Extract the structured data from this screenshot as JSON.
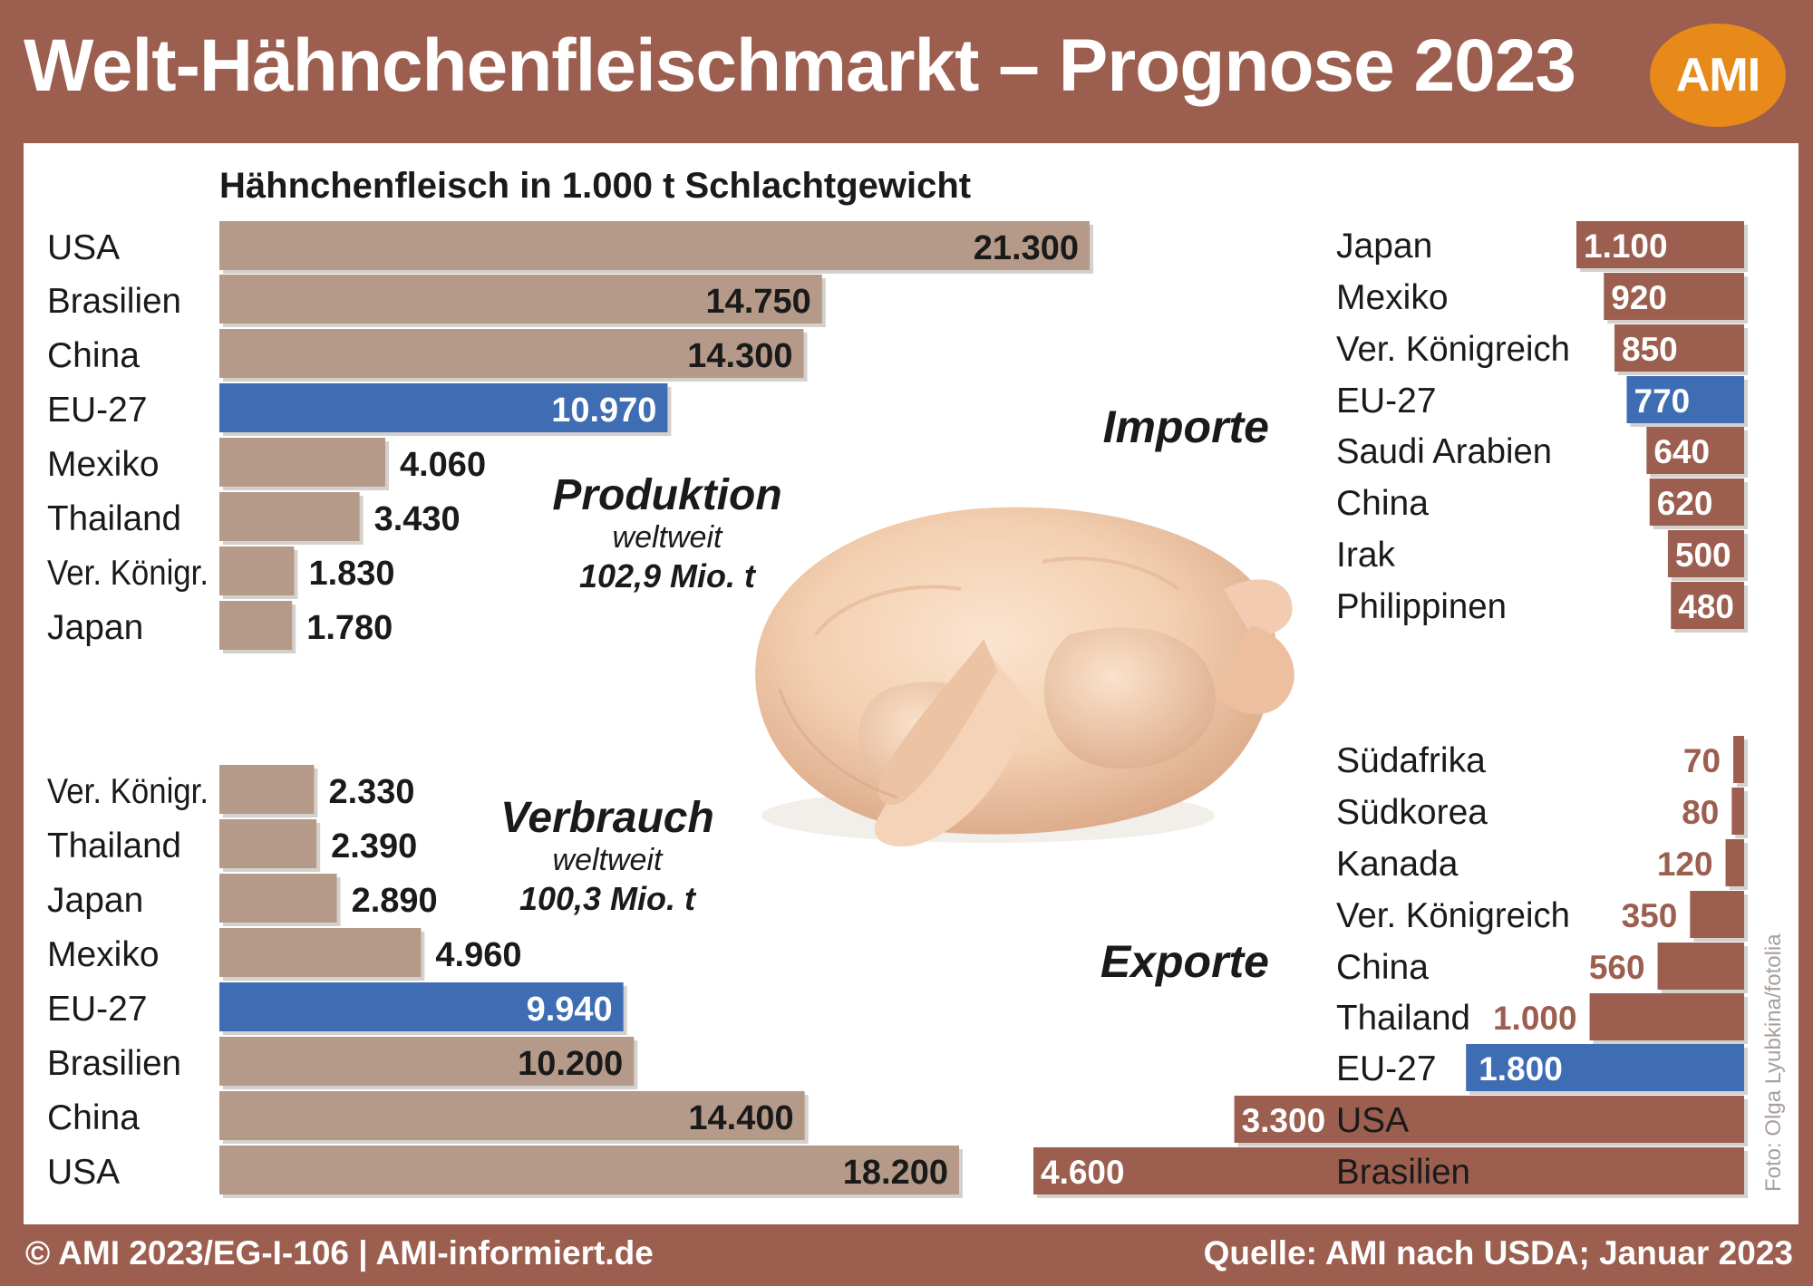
{
  "title": "Welt-Hähnchenfleischmarkt – Prognose 2023",
  "logo_text": "AMI",
  "footer": {
    "left": "© AMI 2023/EG-I-106 | AMI-informiert.de",
    "right": "Quelle: AMI nach USDA; Januar 2023"
  },
  "photo_credit": "Foto: Olga Lyubkina/fotolia",
  "colors": {
    "frame": "#9c5e4e",
    "production_bar": "#b59a8a",
    "trade_bar": "#9c5e4e",
    "eu_highlight": "#3f6db4",
    "logo": "#e88a1a"
  },
  "chart_data": [
    {
      "id": "produktion",
      "type": "bar",
      "subtitle": "Hähnchenfleisch in 1.000 t Schlachtgewicht",
      "label": "Produktion",
      "sublabel": "weltweit",
      "total": "102,9 Mio. t",
      "categories": [
        "USA",
        "Brasilien",
        "China",
        "EU-27",
        "Mexiko",
        "Thailand",
        "Ver. Königr.",
        "Japan"
      ],
      "values": [
        21300,
        14750,
        14300,
        10970,
        4060,
        3430,
        1830,
        1780
      ],
      "value_labels": [
        "21.300",
        "14.750",
        "14.300",
        "10.970",
        "4.060",
        "3.430",
        "1.830",
        "1.780"
      ],
      "highlight": "EU-27"
    },
    {
      "id": "verbrauch",
      "type": "bar",
      "label": "Verbrauch",
      "sublabel": "weltweit",
      "total": "100,3 Mio. t",
      "categories": [
        "Ver. Königr.",
        "Thailand",
        "Japan",
        "Mexiko",
        "EU-27",
        "Brasilien",
        "China",
        "USA"
      ],
      "values": [
        2330,
        2390,
        2890,
        4960,
        9940,
        10200,
        14400,
        18200
      ],
      "value_labels": [
        "2.330",
        "2.390",
        "2.890",
        "4.960",
        "9.940",
        "10.200",
        "14.400",
        "18.200"
      ],
      "highlight": "EU-27"
    },
    {
      "id": "importe",
      "type": "bar",
      "label": "Importe",
      "categories": [
        "Japan",
        "Mexiko",
        "Ver. Königreich",
        "EU-27",
        "Saudi Arabien",
        "China",
        "Irak",
        "Philippinen"
      ],
      "values": [
        1100,
        920,
        850,
        770,
        640,
        620,
        500,
        480
      ],
      "value_labels": [
        "1.100",
        "920",
        "850",
        "770",
        "640",
        "620",
        "500",
        "480"
      ],
      "highlight": "EU-27"
    },
    {
      "id": "exporte",
      "type": "bar",
      "label": "Exporte",
      "categories": [
        "Südafrika",
        "Südkorea",
        "Kanada",
        "Ver. Königreich",
        "China",
        "Thailand",
        "EU-27",
        "USA",
        "Brasilien"
      ],
      "values": [
        70,
        80,
        120,
        350,
        560,
        1000,
        1800,
        3300,
        4600
      ],
      "value_labels": [
        "70",
        "80",
        "120",
        "350",
        "560",
        "1.000",
        "1.800",
        "3.300",
        "4.600"
      ],
      "highlight": "EU-27"
    }
  ]
}
